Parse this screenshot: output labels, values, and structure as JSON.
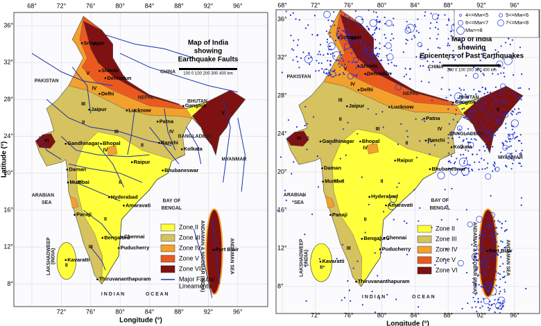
{
  "places": [
    "Srinagar",
    "Shimla",
    "Dehradun",
    "Delhi",
    "Lucknow",
    "Patna",
    "Jaipur",
    "Gandhinagar",
    "Bhopal",
    "Ranchi",
    "Kolkata",
    "Raipur",
    "Bhubaneswar",
    "Daman",
    "Mumbai",
    "Hyderabad",
    "Amaravati",
    "Panaji",
    "Bengaluru",
    "Chennai",
    "Puducherry",
    "Thiruvananthapuram",
    "Kavaratti",
    "Port Blair",
    "Gangtok"
  ],
  "regions": [
    "PAKISTAN",
    "CHINA",
    "NEPAL",
    "BHUTAN",
    "BANGLADESH",
    "MYANMAR",
    "ARABIAN",
    "SEA",
    "BAY OF",
    "BENGAL",
    "I N D I A N",
    "O C E A N",
    "LAKSHADWEEP",
    "(INDIA)",
    "ANDAMAN & NICOBAR (INDIA)",
    "ANDAMAN SEA"
  ],
  "zone_labels": [
    "VI",
    "V",
    "IV",
    "III",
    "II",
    "III",
    "II",
    "IV",
    "IV",
    "V",
    "II",
    "III",
    "II",
    "VI",
    "II",
    "III"
  ],
  "x_axis_label": "Longitude (°)",
  "y_axis_label": "Latitude (°)",
  "lon_ticks": [
    {
      "value": 68,
      "label": "68°"
    },
    {
      "value": 72,
      "label": "72°"
    },
    {
      "value": 76,
      "label": "76°"
    },
    {
      "value": 80,
      "label": "80°"
    },
    {
      "value": 84,
      "label": "84°"
    },
    {
      "value": 88,
      "label": "88°"
    },
    {
      "value": 92,
      "label": "92°"
    },
    {
      "value": 96,
      "label": "96°"
    }
  ],
  "lat_ticks": [
    {
      "value": 36,
      "label": "36°"
    },
    {
      "value": 32,
      "label": "32°"
    },
    {
      "value": 28,
      "label": "28°"
    },
    {
      "value": 24,
      "label": "24°"
    },
    {
      "value": 20,
      "label": "20°"
    },
    {
      "value": 16,
      "label": "16°"
    },
    {
      "value": 12,
      "label": "12°"
    },
    {
      "value": 8,
      "label": "8°"
    }
  ],
  "scale_bar": "100 0 100 200 300 400 km",
  "zones": [
    {
      "label": "Zone II",
      "color": "#ffff3c"
    },
    {
      "label": "Zone III",
      "color": "#d6c25e"
    },
    {
      "label": "Zone IV",
      "color": "#f3a02c"
    },
    {
      "label": "Zone V",
      "color": "#ea5a1e"
    },
    {
      "label": "Zone VI",
      "color": "#7e1212"
    }
  ],
  "panels": [
    {
      "title_lines": [
        "Map of India",
        "showing",
        "Earthquake Faults"
      ],
      "fault_legend": [
        "Major Faults/",
        "Lineaments"
      ],
      "fault_color": "#1a2fb0"
    },
    {
      "title_lines": [
        "Map of India",
        "showing",
        "Epicenters of Past Earthquakes"
      ],
      "magnitude_legend": [
        "4<=Mw<5",
        "5<=Mw<6",
        "6<=Mw<7",
        "7<=Mw<8",
        "Mw>=8"
      ],
      "epicenter_color": "#1a2fd8"
    }
  ]
}
